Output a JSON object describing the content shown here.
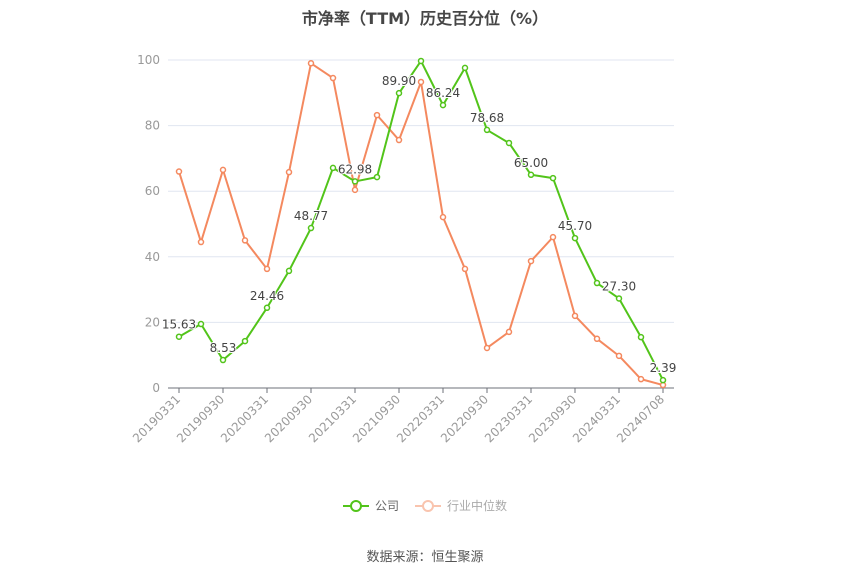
{
  "title": "市净率（TTM）历史百分位（%）",
  "source": "数据来源：恒生聚源",
  "legend": [
    {
      "label": "公司",
      "color": "#52c41a"
    },
    {
      "label": "行业中位数",
      "color": "#f4895f"
    }
  ],
  "chart_data": {
    "type": "line",
    "title": "市净率（TTM）历史百分位（%）",
    "xlabel": "",
    "ylabel": "",
    "ylim": [
      0,
      100
    ],
    "yticks": [
      0,
      20,
      40,
      60,
      80,
      100
    ],
    "grid": true,
    "legend_position": "bottom",
    "x_tick_labels": [
      "20190331",
      "20190930",
      "20200331",
      "20200930",
      "20210331",
      "20210930",
      "20220331",
      "20220930",
      "20230331",
      "20230930",
      "20240331",
      "20240708"
    ],
    "x": [
      "20190331",
      "20190630",
      "20190930",
      "20191231",
      "20200331",
      "20200630",
      "20200930",
      "20201231",
      "20210331",
      "20210630",
      "20210930",
      "20211231",
      "20220331",
      "20220630",
      "20220930",
      "20221231",
      "20230331",
      "20230630",
      "20230930",
      "20231231",
      "20240331",
      "20240630",
      "20240708"
    ],
    "series": [
      {
        "name": "公司",
        "color": "#52c41a",
        "values": [
          15.63,
          19.5,
          8.53,
          14.3,
          24.46,
          35.7,
          48.77,
          67.1,
          62.98,
          64.3,
          89.9,
          99.7,
          86.24,
          97.6,
          78.68,
          74.7,
          65.0,
          64.0,
          45.7,
          32.0,
          27.3,
          15.5,
          2.39
        ],
        "labels": {
          "0": "15.63",
          "2": "8.53",
          "4": "24.46",
          "6": "48.77",
          "8": "62.98",
          "10": "89.90",
          "12": "86.24",
          "14": "78.68",
          "16": "65.00",
          "18": "45.70",
          "20": "27.30",
          "22": "2.39"
        }
      },
      {
        "name": "行业中位数",
        "color": "#f4895f",
        "values": [
          66.0,
          44.5,
          66.5,
          45.0,
          36.3,
          65.8,
          99.0,
          94.5,
          60.4,
          83.2,
          75.6,
          93.3,
          52.1,
          36.3,
          12.2,
          17.1,
          38.7,
          46.0,
          22.0,
          15.0,
          9.8,
          2.7,
          0.9
        ]
      }
    ]
  }
}
